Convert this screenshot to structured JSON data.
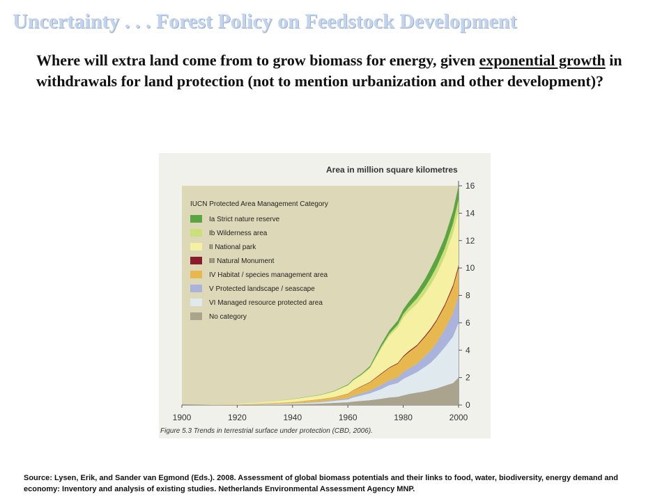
{
  "slide": {
    "title": "Uncertainty . . . Forest Policy on Feedstock Development",
    "question_part1": "Where will extra land come from to grow biomass for energy, given ",
    "question_underlined": "exponential growth",
    "question_part2": " in withdrawals for land protection (not to mention urbanization and other development)?",
    "source": "Source:  Lysen, Erik, and Sander van Egmond (Eds.). 2008. Assessment  of global biomass potentials and their links to food, water, biodiversity, energy demand and economy: Inventory and analysis of existing studies. Netherlands  Environmental  Assessment  Agency  MNP."
  },
  "chart_data": {
    "type": "area",
    "stacked": true,
    "title": "Area in million square kilometres",
    "caption": "Figure 5.3  Trends in terrestrial surface under protection (CBD, 2006).",
    "legend_title": "IUCN Protected Area Management Category",
    "legend_position": "top-left",
    "x": [
      1900,
      1910,
      1920,
      1930,
      1940,
      1950,
      1955,
      1960,
      1962,
      1965,
      1968,
      1970,
      1972,
      1975,
      1978,
      1980,
      1982,
      1985,
      1988,
      1990,
      1992,
      1995,
      1998,
      2000
    ],
    "xlim": [
      1900,
      2000
    ],
    "xticks": [
      "1900",
      "1920",
      "1940",
      "1960",
      "1980",
      "2000"
    ],
    "ylim": [
      0,
      16
    ],
    "yticks": [
      "0",
      "2",
      "4",
      "6",
      "8",
      "10",
      "12",
      "14",
      "16"
    ],
    "series": [
      {
        "name": "No category",
        "color": "#aaa48f",
        "values": [
          0,
          0,
          0,
          0.02,
          0.05,
          0.1,
          0.15,
          0.2,
          0.25,
          0.3,
          0.35,
          0.4,
          0.45,
          0.55,
          0.6,
          0.7,
          0.8,
          0.9,
          1.0,
          1.1,
          1.2,
          1.4,
          1.6,
          2.0
        ]
      },
      {
        "name": "VI  Managed resource protected area",
        "color": "#e0eaee",
        "values": [
          0,
          0,
          0,
          0.03,
          0.05,
          0.1,
          0.15,
          0.2,
          0.3,
          0.4,
          0.5,
          0.6,
          0.7,
          0.9,
          1.0,
          1.2,
          1.3,
          1.5,
          1.8,
          2.0,
          2.3,
          2.8,
          3.4,
          4.0
        ]
      },
      {
        "name": "V   Protected landscape / seascape",
        "color": "#aab3dc",
        "values": [
          0,
          0,
          0,
          0.01,
          0.02,
          0.05,
          0.07,
          0.1,
          0.12,
          0.15,
          0.2,
          0.25,
          0.3,
          0.35,
          0.4,
          0.5,
          0.55,
          0.6,
          0.8,
          0.9,
          1.0,
          1.3,
          1.7,
          2.0
        ]
      },
      {
        "name": "IV  Habitat / species management area",
        "color": "#e6b84e",
        "values": [
          0,
          0,
          0.02,
          0.05,
          0.1,
          0.15,
          0.2,
          0.3,
          0.4,
          0.5,
          0.6,
          0.7,
          0.8,
          0.9,
          1.0,
          1.1,
          1.2,
          1.3,
          1.4,
          1.5,
          1.6,
          1.7,
          1.9,
          2.0
        ]
      },
      {
        "name": "III  Natural Monument",
        "color": "#8a1c2c",
        "values": [
          0,
          0,
          0,
          0,
          0,
          0.01,
          0.01,
          0.02,
          0.02,
          0.03,
          0.03,
          0.04,
          0.05,
          0.05,
          0.06,
          0.07,
          0.08,
          0.08,
          0.09,
          0.1,
          0.1,
          0.12,
          0.15,
          0.2
        ]
      },
      {
        "name": "II   National park",
        "color": "#f6f0a2",
        "values": [
          0,
          0.02,
          0.05,
          0.1,
          0.2,
          0.3,
          0.4,
          0.6,
          0.7,
          0.8,
          1.0,
          1.4,
          1.8,
          2.3,
          2.6,
          2.8,
          2.9,
          3.0,
          3.1,
          3.2,
          3.3,
          3.5,
          3.8,
          4.0
        ]
      },
      {
        "name": "Ib   Wilderness area",
        "color": "#cce07a",
        "values": [
          0,
          0,
          0,
          0,
          0,
          0.01,
          0.02,
          0.03,
          0.04,
          0.05,
          0.07,
          0.1,
          0.12,
          0.15,
          0.2,
          0.25,
          0.3,
          0.4,
          0.45,
          0.5,
          0.55,
          0.6,
          0.7,
          0.8
        ]
      },
      {
        "name": "Ia   Strict nature reserve",
        "color": "#5aa542",
        "values": [
          0,
          0,
          0,
          0,
          0.01,
          0.02,
          0.03,
          0.05,
          0.06,
          0.07,
          0.1,
          0.15,
          0.2,
          0.25,
          0.3,
          0.35,
          0.4,
          0.5,
          0.6,
          0.7,
          0.75,
          0.8,
          0.9,
          1.0
        ]
      }
    ]
  }
}
